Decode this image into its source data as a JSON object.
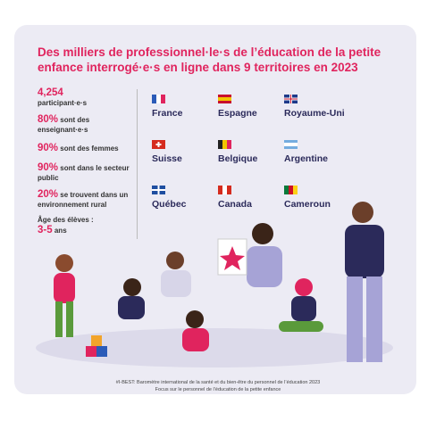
{
  "header": {
    "title": "Des milliers de professionnel·le·s de l’éducation de la petite enfance interrogé·e·s en ligne dans 9 territoires en 2023"
  },
  "stats": [
    {
      "value": "4,254",
      "label": "participant·e·s"
    },
    {
      "value": "80%",
      "label": "sont des enseignant·e·s"
    },
    {
      "value": "90%",
      "label": "sont des femmes"
    },
    {
      "value": "90%",
      "label": "sont dans le secteur public"
    },
    {
      "value": "20%",
      "label": "se trouvent dans un environnement rural"
    }
  ],
  "age": {
    "label": "Âge des élèves :",
    "value": "3-5",
    "unit": "ans"
  },
  "countries": [
    "France",
    "Espagne",
    "Royaume-Uni",
    "Suisse",
    "Belgique",
    "Argentine",
    "Québec",
    "Canada",
    "Cameroun"
  ],
  "footer": [
    "#I-BEST: Baromètre international de la santé et du bien-être du personnel de l’éducation 2023",
    "Focus sur le personnel de l’éducation de la petite enfance"
  ]
}
